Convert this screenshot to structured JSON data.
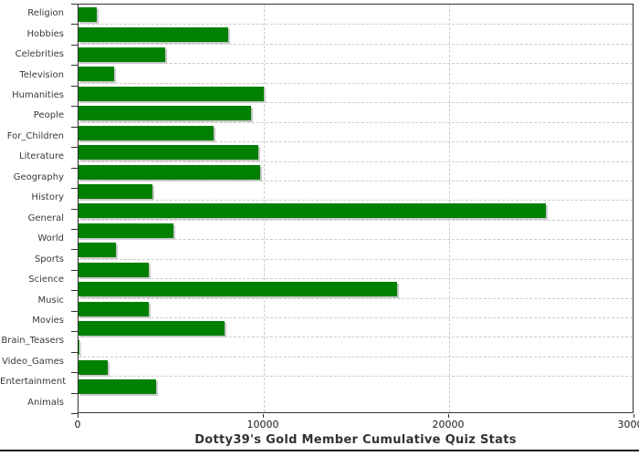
{
  "chart_data": {
    "type": "bar",
    "orientation": "horizontal",
    "title": "Dotty39's Gold Member Cumulative Quiz Stats",
    "categories": [
      "Religion",
      "Hobbies",
      "Celebrities",
      "Television",
      "Humanities",
      "People",
      "For_Children",
      "Literature",
      "Geography",
      "History",
      "General",
      "World",
      "Sports",
      "Science",
      "Music",
      "Movies",
      "Brain_Teasers",
      "Video_Games",
      "Entertainment",
      "Animals"
    ],
    "values": [
      1000,
      8100,
      4700,
      1900,
      10000,
      9300,
      7300,
      9700,
      9800,
      4000,
      25200,
      5100,
      2000,
      3800,
      17200,
      3800,
      7900,
      50,
      1600,
      4200
    ],
    "xlim": [
      0,
      30000
    ],
    "x_ticks": [
      0,
      10000,
      20000,
      30000
    ],
    "x_tick_labels": [
      "0",
      "10000",
      "20000",
      "30000"
    ],
    "grid": "dashed",
    "legend": "none",
    "colors": {
      "bar": "#008000",
      "bar_shadow": "#c9c9c9",
      "gridline": "#cccccc",
      "axis": "#333333",
      "tick_label": "#1a1a1a",
      "category_label": "#3a3a3a",
      "title": "#333333"
    }
  }
}
